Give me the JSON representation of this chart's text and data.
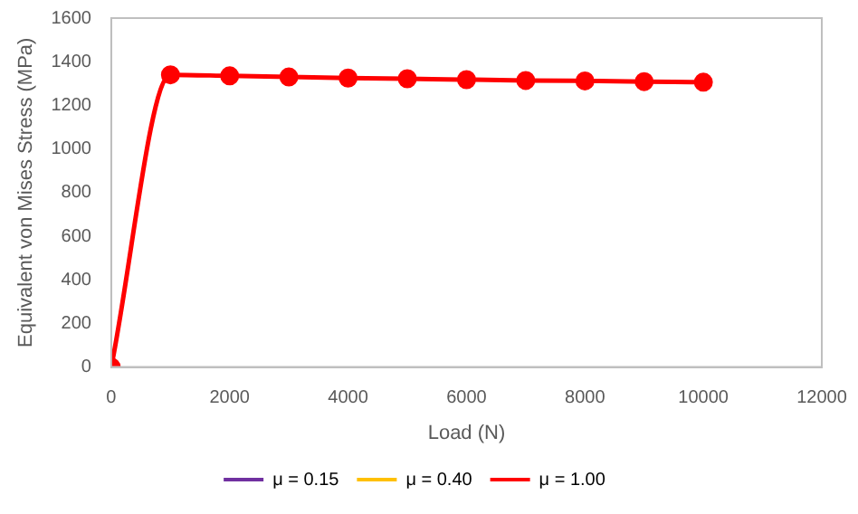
{
  "chart_data": {
    "type": "line",
    "xlabel": "Load (N)",
    "ylabel": "Equivalent von Mises Stress (MPa)",
    "x": [
      0,
      1000,
      2000,
      3000,
      4000,
      5000,
      6000,
      7000,
      8000,
      9000,
      10000
    ],
    "series": [
      {
        "name": "μ = 0.15",
        "color": "#7030a0",
        "values": [
          null,
          null,
          null,
          null,
          null,
          null,
          null,
          null,
          null,
          null,
          null
        ]
      },
      {
        "name": "μ = 0.40",
        "color": "#ffc000",
        "values": [
          null,
          null,
          null,
          null,
          null,
          null,
          null,
          null,
          null,
          null,
          null
        ]
      },
      {
        "name": "μ = 1.00",
        "color": "#ff0000",
        "values": [
          0,
          1340,
          1335,
          1330,
          1325,
          1322,
          1318,
          1314,
          1312,
          1309,
          1306
        ]
      }
    ],
    "xlim": [
      0,
      12000
    ],
    "xticks": [
      0,
      2000,
      4000,
      6000,
      8000,
      10000,
      12000
    ],
    "ylim": [
      0,
      1600
    ],
    "yticks": [
      0,
      200,
      400,
      600,
      800,
      1000,
      1200,
      1400,
      1600
    ],
    "grid": false,
    "legend": "bottom",
    "marker": "circle",
    "line_style": "solid"
  }
}
